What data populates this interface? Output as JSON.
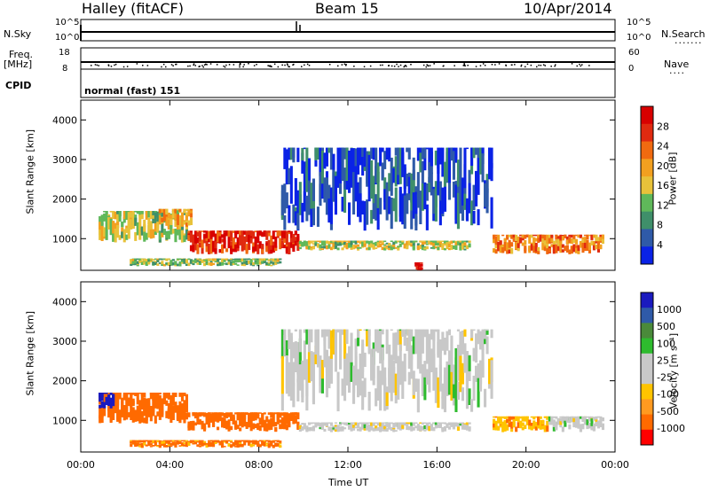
{
  "header": {
    "station": "Halley (fitACF)",
    "beam": "Beam 15",
    "date": "10/Apr/2014"
  },
  "strips": {
    "nsky_label": "N.Sky",
    "nsky_ticks": [
      "10^5",
      "10^0"
    ],
    "nsearch_label": "N.Search",
    "nsearch_ticks": [
      "10^5",
      "10^0"
    ],
    "freq_label": "Freq.",
    "freq_unit": "[MHz]",
    "freq_ticks": [
      "18",
      "8"
    ],
    "nave_label": "Nave",
    "nave_ticks": [
      "60",
      "0"
    ],
    "cpid_label": "CPID",
    "cpid_value": "normal (fast) 151"
  },
  "colors": {
    "power_scale": [
      "#0a22e6",
      "#2f5aa8",
      "#3f8f6a",
      "#5fb85a",
      "#e8c23a",
      "#f2a020",
      "#f06a10",
      "#e02a10",
      "#d80000"
    ],
    "velocity_scale": [
      "#ff0000",
      "#ff6a00",
      "#ff9a20",
      "#ffc400",
      "#c8c8c8",
      "#c8c8c8",
      "#2ebb2e",
      "#4a8a3a",
      "#2f5aa8",
      "#1a1abf"
    ]
  },
  "chart_data": [
    {
      "type": "heatmap",
      "title": "",
      "xlabel": "Time UT",
      "ylabel": "Slant Range [km]",
      "x_ticks": [
        "00:00",
        "04:00",
        "08:00",
        "12:00",
        "16:00",
        "20:00",
        "00:00"
      ],
      "y_ticks": [
        "1000",
        "2000",
        "3000",
        "4000"
      ],
      "ylim": [
        200,
        4500
      ],
      "xlim_hours": [
        0,
        24
      ],
      "colorbar_label": "Power [dB]",
      "colorbar_ticks": [
        "4",
        "8",
        "12",
        "16",
        "20",
        "24",
        "28"
      ],
      "colorbar_range": [
        0,
        30
      ],
      "features": [
        {
          "t0": 0.8,
          "t1": 4.8,
          "r0": 900,
          "r1": 1700,
          "level": 14
        },
        {
          "t0": 3.5,
          "t1": 5.0,
          "r0": 1300,
          "r1": 1750,
          "level": 18
        },
        {
          "t0": 4.8,
          "t1": 9.8,
          "r0": 600,
          "r1": 1200,
          "level": 26
        },
        {
          "t0": 9.8,
          "t1": 17.5,
          "r0": 700,
          "r1": 950,
          "level": 14
        },
        {
          "t0": 2.2,
          "t1": 9.0,
          "r0": 300,
          "r1": 500,
          "level": 12
        },
        {
          "t0": 18.5,
          "t1": 23.5,
          "r0": 600,
          "r1": 1100,
          "level": 20
        },
        {
          "t0": 9.0,
          "t1": 18.5,
          "r0": 1200,
          "r1": 3300,
          "level": 4
        },
        {
          "t0": 15.0,
          "t1": 15.3,
          "r0": 200,
          "r1": 400,
          "level": 28
        }
      ]
    },
    {
      "type": "heatmap",
      "title": "",
      "xlabel": "Time UT",
      "ylabel": "Slant Range [km]",
      "x_ticks": [
        "00:00",
        "04:00",
        "08:00",
        "12:00",
        "16:00",
        "20:00",
        "00:00"
      ],
      "y_ticks": [
        "1000",
        "2000",
        "3000",
        "4000"
      ],
      "ylim": [
        200,
        4500
      ],
      "xlim_hours": [
        0,
        24
      ],
      "colorbar_label": "Velocity [m s⁻¹]",
      "colorbar_ticks": [
        "1000",
        "500",
        "100",
        "25",
        "-25",
        "-100",
        "-500",
        "-1000"
      ],
      "colorbar_range": [
        -1000,
        1000
      ],
      "features": [
        {
          "t0": 0.8,
          "t1": 4.8,
          "r0": 900,
          "r1": 1700,
          "velocity": -300
        },
        {
          "t0": 4.8,
          "t1": 9.8,
          "r0": 700,
          "r1": 1200,
          "velocity": -150
        },
        {
          "t0": 9.8,
          "t1": 17.5,
          "r0": 700,
          "r1": 950,
          "velocity": 0
        },
        {
          "t0": 2.2,
          "t1": 9.0,
          "r0": 300,
          "r1": 500,
          "velocity": -120
        },
        {
          "t0": 18.5,
          "t1": 21.0,
          "r0": 700,
          "r1": 1100,
          "velocity": -80
        },
        {
          "t0": 21.0,
          "t1": 23.5,
          "r0": 700,
          "r1": 1100,
          "velocity": 0
        },
        {
          "t0": 9.0,
          "t1": 18.5,
          "r0": 1200,
          "r1": 3300,
          "velocity": 0
        },
        {
          "t0": 0.8,
          "t1": 1.5,
          "r0": 1300,
          "r1": 1700,
          "velocity": 700
        }
      ]
    }
  ]
}
